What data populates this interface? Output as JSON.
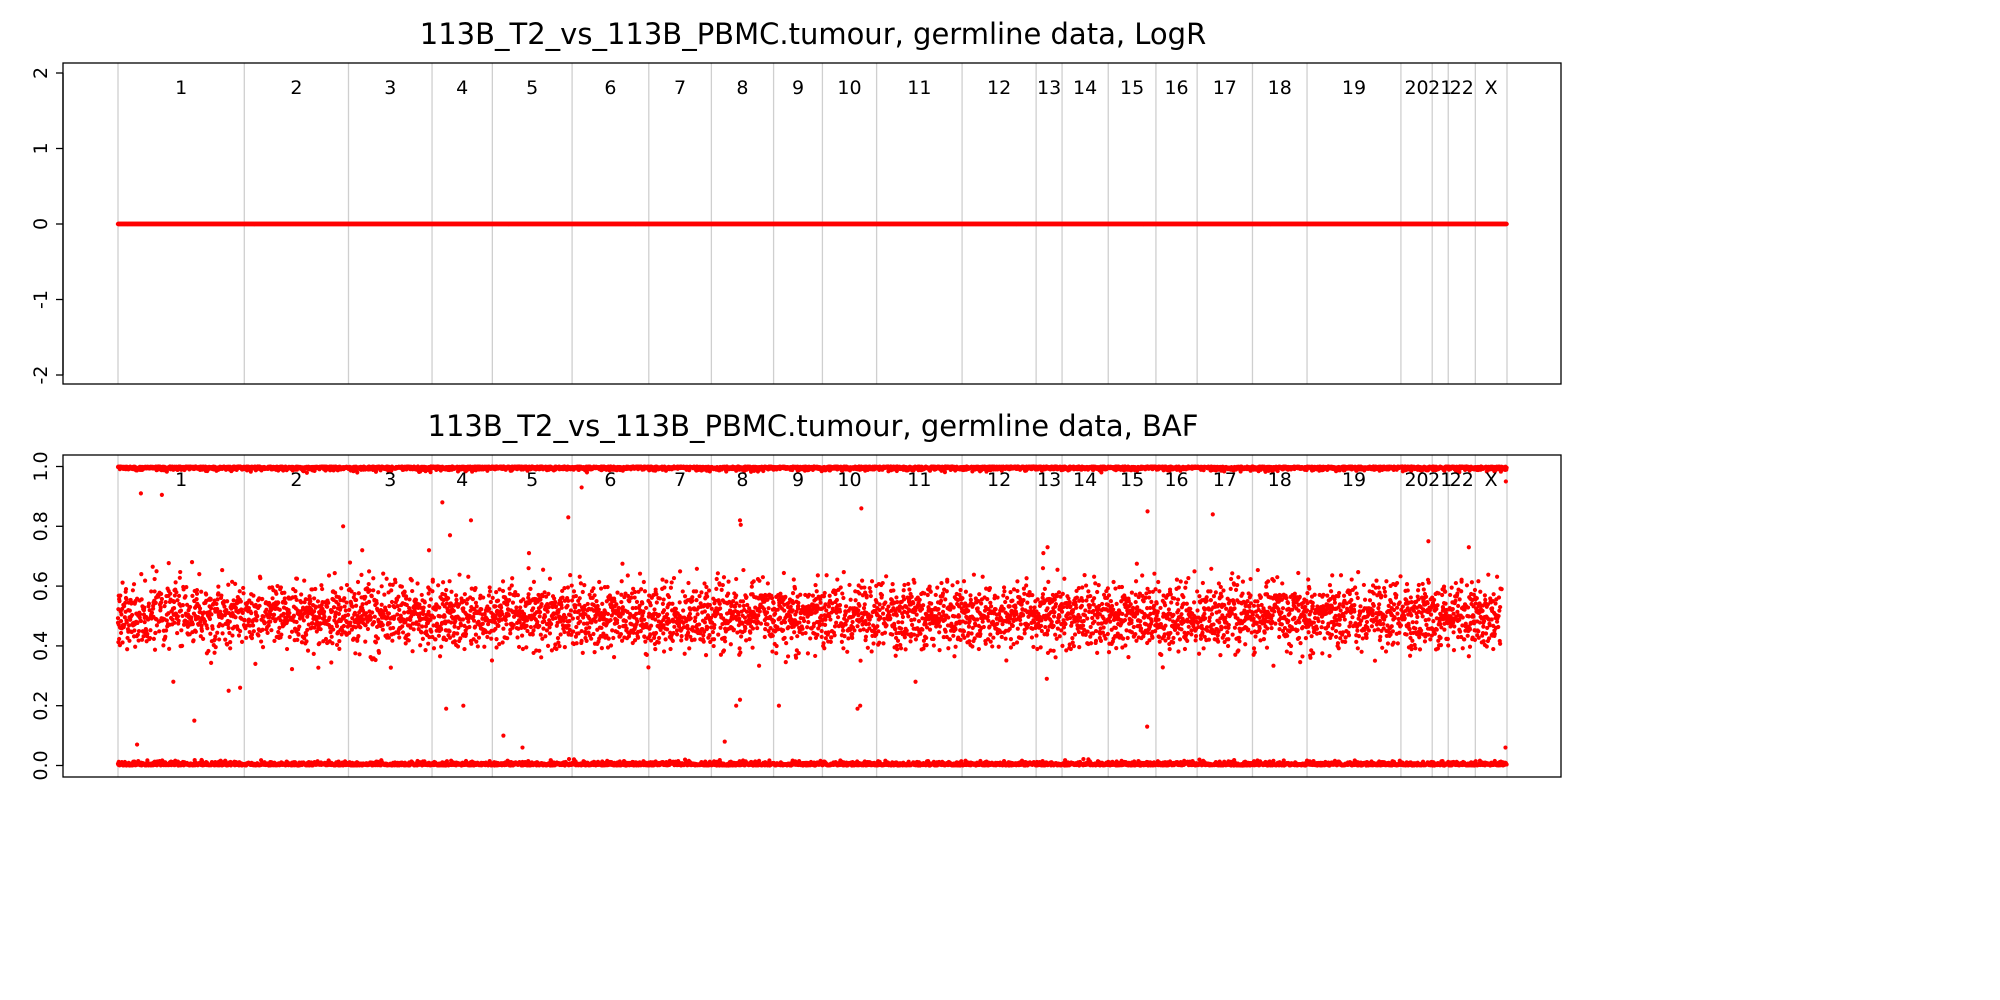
{
  "chart_data": [
    {
      "type": "scatter",
      "title": "113B_T2_vs_113B_PBMC.tumour, germline data, LogR",
      "xlabel": "",
      "ylabel": "",
      "ylim": [
        -2,
        2
      ],
      "yticks": [
        "2",
        "1",
        "0",
        "-1",
        "-2"
      ],
      "chromosomes": [
        "1",
        "2",
        "3",
        "4",
        "5",
        "6",
        "7",
        "8",
        "9",
        "10",
        "11",
        "12",
        "13",
        "14",
        "15",
        "16",
        "17",
        "18",
        "19",
        "20",
        "21",
        "22",
        "X"
      ],
      "chromosome_boundaries_index": [
        0,
        331,
        604,
        823,
        981,
        1190,
        1391,
        1555,
        1718,
        1846,
        1988,
        2212,
        2406,
        2474,
        2595,
        2720,
        2828,
        2973,
        3116,
        3362,
        3444,
        3486,
        3557,
        3640
      ],
      "series": [
        {
          "values_constant": 0,
          "color": "#ff0000"
        }
      ],
      "grid": false
    },
    {
      "type": "scatter",
      "title": "113B_T2_vs_113B_PBMC.tumour, germline data, BAF",
      "xlabel": "",
      "ylabel": "",
      "ylim": [
        0,
        1
      ],
      "yticks": [
        "1.0",
        "0.8",
        "0.6",
        "0.4",
        "0.2",
        "0.0"
      ],
      "chromosomes": [
        "1",
        "2",
        "3",
        "4",
        "5",
        "6",
        "7",
        "8",
        "9",
        "10",
        "11",
        "12",
        "13",
        "14",
        "15",
        "16",
        "17",
        "18",
        "19",
        "20",
        "21",
        "22",
        "X"
      ],
      "chromosome_boundaries_index": [
        0,
        331,
        604,
        823,
        981,
        1190,
        1391,
        1555,
        1718,
        1846,
        1988,
        2212,
        2406,
        2474,
        2595,
        2720,
        2828,
        2973,
        3116,
        3362,
        3444,
        3486,
        3557,
        3640
      ],
      "bands": [
        {
          "name": "homozygous_high",
          "center": 1.0,
          "spread": 0.006
        },
        {
          "name": "heterozygous",
          "center": 0.5,
          "spread": 0.055
        },
        {
          "name": "homozygous_low",
          "center": 0.0,
          "spread": 0.006
        }
      ],
      "outliers": [
        {
          "i": 60,
          "y": 0.91
        },
        {
          "i": 115,
          "y": 0.905
        },
        {
          "i": 200,
          "y": 0.15
        },
        {
          "i": 145,
          "y": 0.28
        },
        {
          "i": 290,
          "y": 0.25
        },
        {
          "i": 320,
          "y": 0.26
        },
        {
          "i": 50,
          "y": 0.07
        },
        {
          "i": 590,
          "y": 0.8
        },
        {
          "i": 640,
          "y": 0.72
        },
        {
          "i": 815,
          "y": 0.72
        },
        {
          "i": 850,
          "y": 0.88
        },
        {
          "i": 870,
          "y": 0.77
        },
        {
          "i": 925,
          "y": 0.82
        },
        {
          "i": 860,
          "y": 0.19
        },
        {
          "i": 905,
          "y": 0.2
        },
        {
          "i": 1180,
          "y": 0.83
        },
        {
          "i": 1215,
          "y": 0.93
        },
        {
          "i": 1010,
          "y": 0.1
        },
        {
          "i": 1060,
          "y": 0.06
        },
        {
          "i": 1630,
          "y": 0.82
        },
        {
          "i": 1632,
          "y": 0.805
        },
        {
          "i": 1620,
          "y": 0.2
        },
        {
          "i": 1630,
          "y": 0.22
        },
        {
          "i": 1590,
          "y": 0.08
        },
        {
          "i": 1732,
          "y": 0.2
        },
        {
          "i": 1948,
          "y": 0.86
        },
        {
          "i": 1945,
          "y": 0.2
        },
        {
          "i": 1938,
          "y": 0.19
        },
        {
          "i": 2090,
          "y": 0.28
        },
        {
          "i": 2436,
          "y": 0.73
        },
        {
          "i": 2434,
          "y": 0.29
        },
        {
          "i": 2698,
          "y": 0.85
        },
        {
          "i": 2697,
          "y": 0.13
        },
        {
          "i": 2869,
          "y": 0.84
        },
        {
          "i": 3434,
          "y": 0.75
        },
        {
          "i": 3540,
          "y": 0.73
        },
        {
          "i": 3626,
          "y": 0.59
        },
        {
          "i": 3636,
          "y": 0.06
        },
        {
          "i": 3637,
          "y": 0.95
        }
      ],
      "color": "#ff0000",
      "grid": false
    }
  ]
}
